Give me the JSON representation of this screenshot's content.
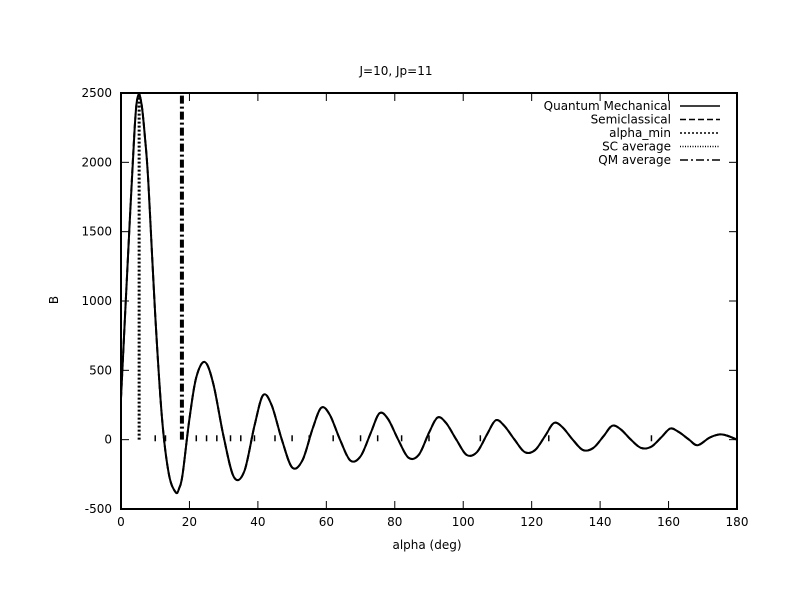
{
  "chart_data": {
    "type": "line",
    "title": "J=10, Jp=11",
    "xlabel": "alpha (deg)",
    "ylabel": "B",
    "xlim": [
      0,
      180
    ],
    "ylim": [
      -500,
      2500
    ],
    "xticks": [
      0,
      20,
      40,
      60,
      80,
      100,
      120,
      140,
      160,
      180
    ],
    "yticks": [
      -500,
      0,
      500,
      1000,
      1500,
      2000,
      2500
    ],
    "grid": false,
    "legend_position": "top-right",
    "series": [
      {
        "name": "Quantum Mechanical",
        "style": "solid",
        "x": [
          0,
          2,
          4,
          5,
          6,
          7,
          8,
          10,
          12,
          14,
          16,
          17,
          18,
          20,
          22,
          24.5,
          27,
          30,
          33,
          36,
          39,
          41.5,
          44,
          47,
          50,
          53,
          56,
          58.5,
          61,
          64,
          67,
          70,
          73,
          75.5,
          78,
          81,
          84,
          87,
          90,
          92.5,
          95,
          98,
          101,
          104,
          107,
          109.5,
          112,
          115,
          118,
          121,
          124,
          126.5,
          129,
          132,
          135,
          138,
          141,
          143.5,
          146,
          149,
          152,
          155,
          158,
          160.5,
          163,
          166,
          168.5,
          172,
          175,
          177,
          180
        ],
        "y": [
          300,
          1300,
          2250,
          2480,
          2420,
          2180,
          1850,
          900,
          150,
          -250,
          -380,
          -350,
          -250,
          150,
          450,
          560,
          400,
          20,
          -270,
          -230,
          100,
          320,
          250,
          0,
          -200,
          -150,
          80,
          230,
          180,
          0,
          -150,
          -120,
          50,
          190,
          150,
          0,
          -130,
          -110,
          50,
          160,
          120,
          0,
          -110,
          -90,
          40,
          140,
          100,
          0,
          -90,
          -75,
          30,
          120,
          90,
          0,
          -75,
          -60,
          25,
          100,
          75,
          0,
          -60,
          -50,
          20,
          80,
          55,
          0,
          -40,
          15,
          38,
          30,
          0
        ]
      },
      {
        "name": "Semiclassical",
        "style": "dashed",
        "x": [
          0,
          2,
          4,
          5,
          6,
          7,
          8,
          10,
          12,
          14,
          16,
          17,
          18,
          20,
          22,
          24.5,
          27,
          30,
          33,
          36,
          39,
          41.5,
          44,
          47,
          50,
          53,
          56,
          58.5,
          61,
          64,
          67,
          70,
          73,
          75.5,
          78,
          81,
          84,
          87,
          90,
          92.5,
          95,
          98,
          101,
          104,
          107,
          109.5,
          112,
          115,
          118,
          121,
          124,
          126.5,
          129,
          132,
          135,
          138,
          141,
          143.5,
          146,
          149,
          152,
          155,
          158,
          160.5,
          163,
          166,
          168.5,
          172,
          175,
          177,
          180
        ],
        "y": [
          300,
          1300,
          2250,
          2480,
          2420,
          2180,
          1850,
          900,
          150,
          -250,
          -380,
          -350,
          -250,
          150,
          450,
          560,
          400,
          20,
          -270,
          -230,
          100,
          320,
          250,
          0,
          -200,
          -150,
          80,
          230,
          180,
          0,
          -150,
          -120,
          50,
          190,
          150,
          0,
          -130,
          -110,
          50,
          160,
          120,
          0,
          -110,
          -90,
          40,
          140,
          100,
          0,
          -90,
          -75,
          30,
          120,
          90,
          0,
          -75,
          -60,
          25,
          100,
          75,
          0,
          -60,
          -50,
          20,
          80,
          55,
          0,
          -40,
          15,
          38,
          30,
          0
        ]
      },
      {
        "name": "alpha_min",
        "style": "dotted",
        "x": [
          5.3,
          5.3
        ],
        "y": [
          0,
          2500
        ]
      },
      {
        "name": "SC average",
        "style": "fine-dotted",
        "x": [
          10,
          13,
          22,
          25,
          28,
          32,
          35,
          39,
          45,
          50,
          55,
          62,
          70,
          75,
          82,
          90,
          105,
          125,
          155
        ],
        "y": [
          10,
          10,
          10,
          10,
          10,
          10,
          10,
          10,
          10,
          10,
          10,
          10,
          10,
          10,
          10,
          10,
          10,
          10,
          10
        ]
      },
      {
        "name": "QM average",
        "style": "dash-dot",
        "x": [
          17.8,
          17.8
        ],
        "y": [
          0,
          2500
        ]
      }
    ]
  }
}
